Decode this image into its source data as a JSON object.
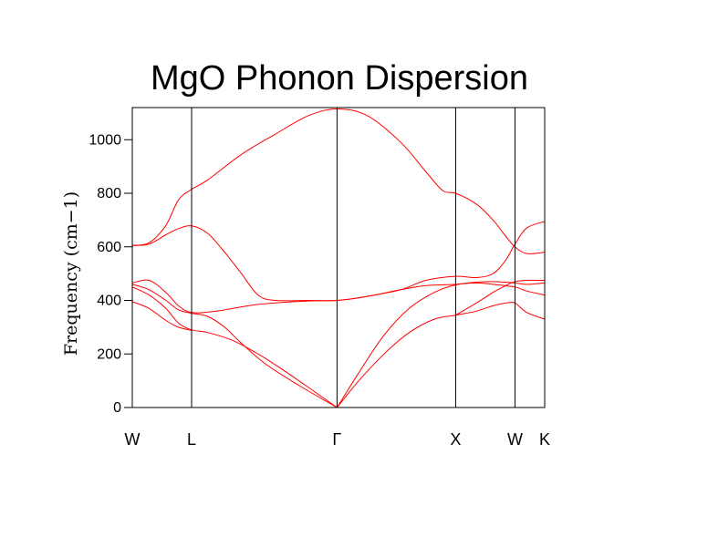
{
  "chart_data": {
    "type": "line",
    "title": "MgO Phonon Dispersion",
    "xlabel": "",
    "ylabel": "Frequency (cm−1)",
    "ylim": [
      0,
      1120
    ],
    "y_ticks": [
      0,
      200,
      400,
      600,
      800,
      1000
    ],
    "grid": false,
    "legend": "none",
    "line_color": "#ff0000",
    "symmetry_points": [
      {
        "label": "W",
        "x": 0.0
      },
      {
        "label": "L",
        "x": 0.707
      },
      {
        "label": "Γ",
        "x": 2.44
      },
      {
        "label": "X",
        "x": 3.854
      },
      {
        "label": "W",
        "x": 4.561
      },
      {
        "label": "K",
        "x": 4.915
      }
    ],
    "x_range": [
      0,
      4.915
    ],
    "series": [
      {
        "values": [
          [
            0,
            605
          ],
          [
            0.2,
            615
          ],
          [
            0.4,
            680
          ],
          [
            0.55,
            775
          ],
          [
            0.707,
            815
          ],
          [
            0.9,
            850
          ],
          [
            1.3,
            945
          ],
          [
            1.7,
            1020
          ],
          [
            2.1,
            1090
          ],
          [
            2.44,
            1115
          ],
          [
            2.8,
            1090
          ],
          [
            3.2,
            990
          ],
          [
            3.5,
            880
          ],
          [
            3.7,
            810
          ],
          [
            3.854,
            800
          ],
          [
            4.1,
            760
          ],
          [
            4.3,
            700
          ],
          [
            4.45,
            640
          ],
          [
            4.561,
            600
          ],
          [
            4.7,
            575
          ],
          [
            4.915,
            580
          ]
        ]
      },
      {
        "values": [
          [
            0,
            605
          ],
          [
            0.2,
            610
          ],
          [
            0.4,
            645
          ],
          [
            0.55,
            668
          ],
          [
            0.707,
            678
          ],
          [
            0.9,
            650
          ],
          [
            1.1,
            580
          ],
          [
            1.3,
            500
          ],
          [
            1.5,
            420
          ],
          [
            1.7,
            400
          ],
          [
            2.1,
            400
          ],
          [
            2.44,
            400
          ],
          [
            2.8,
            415
          ],
          [
            3.2,
            440
          ],
          [
            3.5,
            475
          ],
          [
            3.854,
            490
          ],
          [
            4.1,
            485
          ],
          [
            4.3,
            500
          ],
          [
            4.45,
            550
          ],
          [
            4.561,
            610
          ],
          [
            4.7,
            670
          ],
          [
            4.915,
            695
          ]
        ]
      },
      {
        "values": [
          [
            0,
            465
          ],
          [
            0.2,
            475
          ],
          [
            0.4,
            430
          ],
          [
            0.55,
            380
          ],
          [
            0.707,
            355
          ],
          [
            1.0,
            360
          ],
          [
            1.5,
            385
          ],
          [
            2.1,
            398
          ],
          [
            2.44,
            400
          ],
          [
            2.8,
            415
          ],
          [
            3.2,
            440
          ],
          [
            3.5,
            455
          ],
          [
            3.854,
            460
          ],
          [
            4.1,
            468
          ],
          [
            4.3,
            470
          ],
          [
            4.561,
            465
          ],
          [
            4.7,
            460
          ],
          [
            4.915,
            465
          ]
        ]
      },
      {
        "values": [
          [
            0,
            460
          ],
          [
            0.2,
            440
          ],
          [
            0.4,
            400
          ],
          [
            0.55,
            365
          ],
          [
            0.707,
            352
          ],
          [
            0.9,
            340
          ],
          [
            1.1,
            300
          ],
          [
            1.3,
            240
          ],
          [
            1.6,
            160
          ],
          [
            2.0,
            80
          ],
          [
            2.44,
            0
          ]
        ]
      },
      {
        "values": [
          [
            0,
            450
          ],
          [
            0.2,
            420
          ],
          [
            0.4,
            370
          ],
          [
            0.55,
            315
          ],
          [
            0.707,
            290
          ],
          [
            0.9,
            280
          ],
          [
            1.2,
            250
          ],
          [
            1.5,
            200
          ],
          [
            1.8,
            140
          ],
          [
            2.1,
            75
          ],
          [
            2.44,
            0
          ]
        ]
      },
      {
        "values": [
          [
            0,
            395
          ],
          [
            0.2,
            370
          ],
          [
            0.4,
            325
          ],
          [
            0.55,
            300
          ],
          [
            0.707,
            288
          ]
        ]
      },
      {
        "values": [
          [
            2.44,
            0
          ],
          [
            2.7,
            130
          ],
          [
            3.0,
            270
          ],
          [
            3.3,
            370
          ],
          [
            3.6,
            430
          ],
          [
            3.854,
            458
          ],
          [
            4.1,
            465
          ],
          [
            4.3,
            460
          ],
          [
            4.561,
            450
          ],
          [
            4.7,
            435
          ],
          [
            4.915,
            420
          ]
        ]
      },
      {
        "values": [
          [
            2.44,
            0
          ],
          [
            2.7,
            100
          ],
          [
            3.0,
            200
          ],
          [
            3.3,
            280
          ],
          [
            3.6,
            330
          ],
          [
            3.854,
            345
          ],
          [
            4.1,
            360
          ],
          [
            4.3,
            380
          ],
          [
            4.45,
            390
          ],
          [
            4.561,
            390
          ],
          [
            4.7,
            355
          ],
          [
            4.915,
            330
          ]
        ]
      },
      {
        "values": [
          [
            3.854,
            345
          ],
          [
            4.1,
            390
          ],
          [
            4.3,
            430
          ],
          [
            4.45,
            455
          ],
          [
            4.561,
            470
          ],
          [
            4.7,
            475
          ],
          [
            4.915,
            475
          ]
        ]
      }
    ]
  }
}
